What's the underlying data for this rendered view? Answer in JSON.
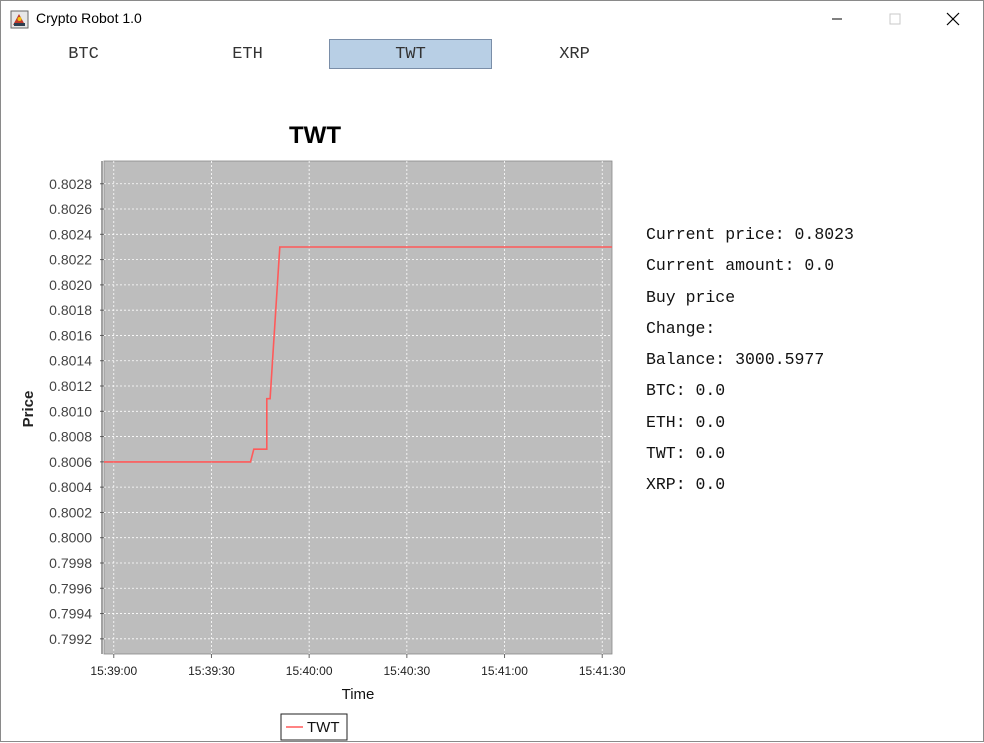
{
  "window": {
    "title": "Crypto Robot 1.0",
    "controls": {
      "minimize": "minimize-icon",
      "maximize": "maximize-icon",
      "close": "close-icon"
    }
  },
  "tabs": [
    {
      "label": "BTC",
      "active": false
    },
    {
      "label": "ETH",
      "active": false
    },
    {
      "label": "TWT",
      "active": true
    },
    {
      "label": "XRP",
      "active": false
    }
  ],
  "info": {
    "current_price": "Current price: 0.8023",
    "current_amount": "Current amount: 0.0",
    "buy_price": "Buy price",
    "change": "Change:",
    "balance": "Balance: 3000.5977",
    "btc": "BTC: 0.0",
    "eth": "ETH: 0.0",
    "twt": "TWT: 0.0",
    "xrp": "XRP: 0.0"
  },
  "colors": {
    "plot_background": "#bdbdbd",
    "series_line": "#ff5a5a",
    "active_tab": "#b8cfe5"
  },
  "chart_data": {
    "type": "line",
    "title": "TWT",
    "xlabel": "Time",
    "ylabel": "Price",
    "x_ticks": [
      "15:39:00",
      "15:39:30",
      "15:40:00",
      "15:40:30",
      "15:41:00",
      "15:41:30"
    ],
    "y_ticks": [
      "0.8028",
      "0.8026",
      "0.8024",
      "0.8022",
      "0.8020",
      "0.8018",
      "0.8016",
      "0.8014",
      "0.8012",
      "0.8010",
      "0.8008",
      "0.8006",
      "0.8004",
      "0.8002",
      "0.8000",
      "0.7998",
      "0.7996",
      "0.7994",
      "0.7992"
    ],
    "y_range": [
      0.79908,
      0.80298
    ],
    "x_range_seconds": [
      "15:38:57",
      "15:41:33"
    ],
    "grid": true,
    "legend": "bottom",
    "series": [
      {
        "name": "TWT",
        "points": [
          [
            "15:38:57",
            0.8006
          ],
          [
            "15:39:42",
            0.8006
          ],
          [
            "15:39:43",
            0.8007
          ],
          [
            "15:39:47",
            0.8007
          ],
          [
            "15:39:47",
            0.8011
          ],
          [
            "15:39:48",
            0.8011
          ],
          [
            "15:39:51",
            0.8023
          ],
          [
            "15:41:33",
            0.8023
          ]
        ]
      }
    ]
  }
}
